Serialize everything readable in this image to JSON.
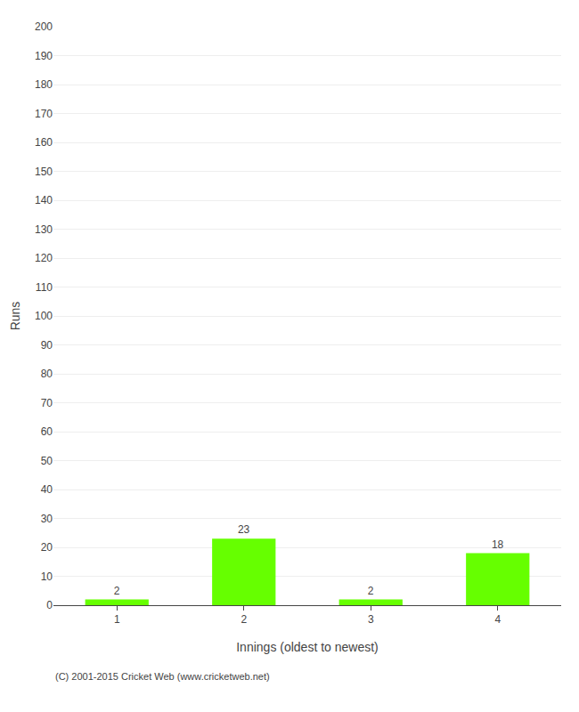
{
  "chart_data": {
    "type": "bar",
    "xlabel": "Innings (oldest to newest)",
    "ylabel": "Runs",
    "categories": [
      "1",
      "2",
      "3",
      "4"
    ],
    "values": [
      2,
      23,
      2,
      18
    ],
    "color": "#66ff00",
    "ylim": [
      0,
      200
    ],
    "yticks": [
      0,
      10,
      20,
      30,
      40,
      50,
      60,
      70,
      80,
      90,
      100,
      110,
      120,
      130,
      140,
      150,
      160,
      170,
      180,
      190,
      200
    ],
    "grid": true,
    "data_labels": true,
    "annotations": [
      "(C) 2001-2015 Cricket Web (www.cricketweb.net)"
    ]
  }
}
